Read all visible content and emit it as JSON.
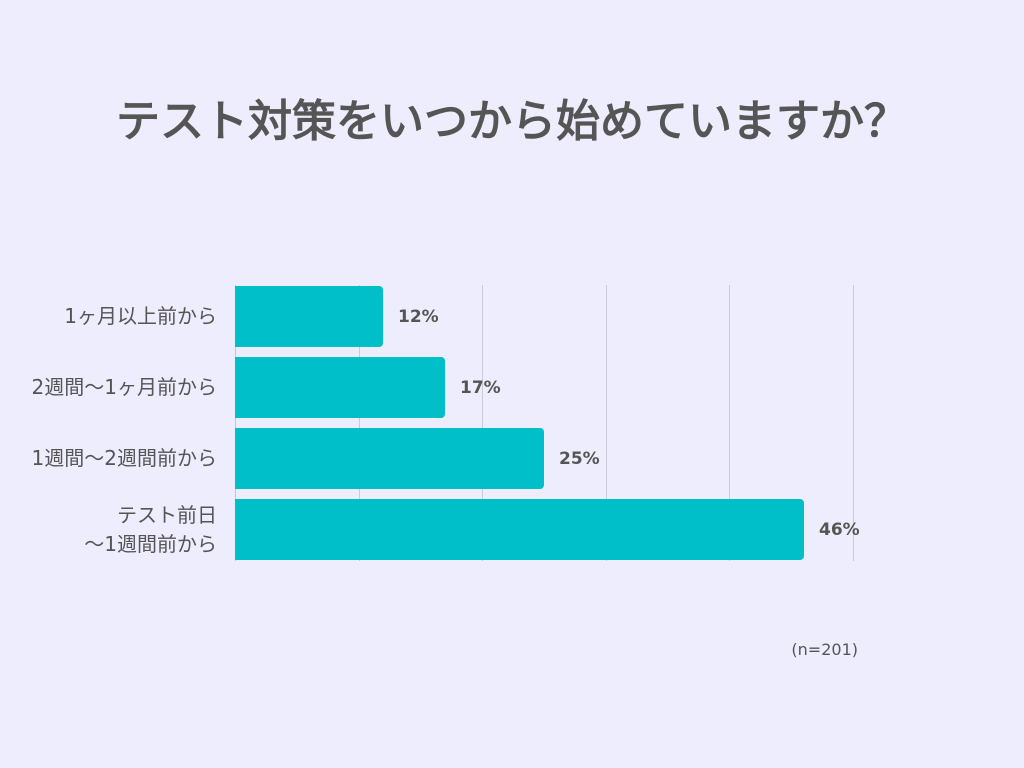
{
  "colors": {
    "background": "#EEEDFD",
    "bar": "#00BFC8",
    "text": "#555555",
    "grid": "#CBCAD9"
  },
  "chart_data": {
    "type": "bar",
    "orientation": "horizontal",
    "title": "テスト対策をいつから始めていますか？",
    "categories": [
      "1ヶ月以上前から",
      "2週間〜1ヶ月前から",
      "1週間〜2週間前から",
      "テスト前日\n〜1週間前から"
    ],
    "values": [
      12,
      17,
      25,
      46
    ],
    "data_labels": [
      "12%",
      "17%",
      "25%",
      "46%"
    ],
    "xlim": [
      0,
      50
    ],
    "grid": true,
    "grid_lines_at": [
      10,
      20,
      30,
      40,
      50
    ],
    "note": "(n=201)"
  }
}
